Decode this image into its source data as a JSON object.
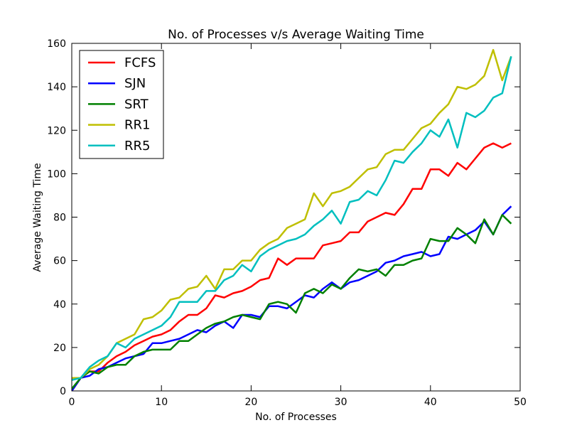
{
  "chart_data": {
    "type": "line",
    "title": "No. of Processes v/s Average Waiting Time",
    "xlabel": "No. of Processes",
    "ylabel": "Average Waiting Time",
    "xlim": [
      0,
      50
    ],
    "ylim": [
      0,
      160
    ],
    "xticks": [
      0,
      10,
      20,
      30,
      40,
      50
    ],
    "yticks": [
      0,
      20,
      40,
      60,
      80,
      100,
      120,
      140,
      160
    ],
    "grid": false,
    "legend_position": "top-left",
    "x": [
      0,
      1,
      2,
      3,
      4,
      5,
      6,
      7,
      8,
      9,
      10,
      11,
      12,
      13,
      14,
      15,
      16,
      17,
      18,
      19,
      20,
      21,
      22,
      23,
      24,
      25,
      26,
      27,
      28,
      29,
      30,
      31,
      32,
      33,
      34,
      35,
      36,
      37,
      38,
      39,
      40,
      41,
      42,
      43,
      44,
      45,
      46,
      47,
      48,
      49
    ],
    "series": [
      {
        "name": "FCFS",
        "color": "#ff0000",
        "values": [
          0,
          6,
          9,
          9,
          13,
          16,
          18,
          21,
          23,
          25,
          26,
          28,
          32,
          35,
          35,
          38,
          44,
          43,
          45,
          46,
          48,
          51,
          52,
          61,
          58,
          61,
          61,
          61,
          67,
          68,
          69,
          73,
          73,
          78,
          80,
          82,
          81,
          86,
          93,
          93,
          102,
          102,
          99,
          105,
          102,
          107,
          112,
          114,
          112,
          114
        ]
      },
      {
        "name": "SJN",
        "color": "#0000ff",
        "values": [
          0,
          6,
          7,
          10,
          11,
          13,
          15,
          16,
          17,
          22,
          22,
          23,
          24,
          26,
          28,
          27,
          30,
          32,
          29,
          35,
          35,
          34,
          39,
          39,
          38,
          41,
          44,
          43,
          47,
          50,
          47,
          50,
          51,
          53,
          55,
          59,
          60,
          62,
          63,
          64,
          62,
          63,
          71,
          70,
          72,
          74,
          78,
          72,
          81,
          85
        ]
      },
      {
        "name": "SRT",
        "color": "#008000",
        "values": [
          1,
          6,
          9,
          8,
          11,
          12,
          12,
          16,
          18,
          19,
          19,
          19,
          23,
          23,
          26,
          29,
          31,
          32,
          34,
          35,
          34,
          33,
          40,
          41,
          40,
          36,
          45,
          47,
          45,
          49,
          47,
          52,
          56,
          55,
          56,
          53,
          58,
          58,
          60,
          61,
          70,
          69,
          69,
          75,
          72,
          68,
          79,
          72,
          81,
          77
        ]
      },
      {
        "name": "RR1",
        "color": "#bfbf00",
        "values": [
          6,
          6,
          10,
          12,
          16,
          22,
          24,
          26,
          33,
          34,
          37,
          42,
          43,
          47,
          48,
          53,
          47,
          56,
          56,
          60,
          60,
          65,
          68,
          70,
          75,
          77,
          79,
          91,
          85,
          91,
          92,
          94,
          98,
          102,
          103,
          109,
          111,
          111,
          116,
          121,
          123,
          128,
          132,
          140,
          139,
          141,
          145,
          157,
          143,
          154
        ]
      },
      {
        "name": "RR5",
        "color": "#00bfbf",
        "values": [
          5,
          6,
          11,
          14,
          16,
          22,
          20,
          24,
          26,
          28,
          30,
          34,
          41,
          41,
          41,
          46,
          46,
          51,
          53,
          58,
          55,
          62,
          65,
          67,
          69,
          70,
          72,
          76,
          79,
          83,
          77,
          87,
          88,
          92,
          90,
          97,
          106,
          105,
          110,
          114,
          120,
          117,
          125,
          112,
          128,
          126,
          129,
          135,
          137,
          154
        ]
      }
    ]
  }
}
